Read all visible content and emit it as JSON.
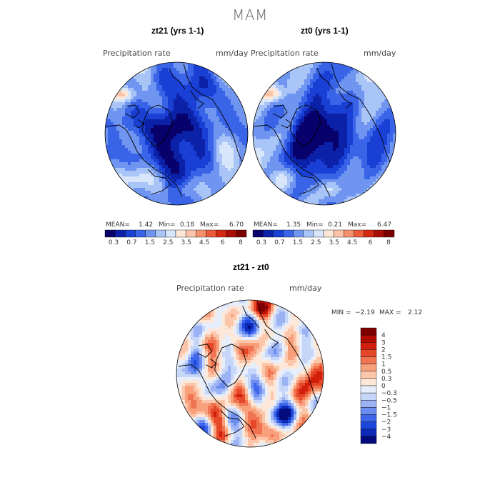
{
  "figure_title": "MAM",
  "colors": {
    "abs_scale": [
      "#08006b",
      "#0b22a8",
      "#1a3fd4",
      "#3a64e8",
      "#6f95f0",
      "#a9c4f7",
      "#d7e6fb",
      "#fde8d8",
      "#fbc3a7",
      "#f6906d",
      "#ec5c3b",
      "#d42a14",
      "#a90f07",
      "#7a0000"
    ],
    "diff_scale": [
      "#040b7d",
      "#0b2ab6",
      "#1c47dc",
      "#3d66ea",
      "#6b8cf0",
      "#9bb3f5",
      "#c5d6f9",
      "#e6eefc",
      "#fde7d8",
      "#fbc6a9",
      "#f7a07b",
      "#f07451",
      "#e64728",
      "#d21f0c",
      "#b30a04",
      "#7f0000"
    ]
  },
  "panels": [
    {
      "title": "zt21 (yrs 1-1)",
      "field_label": "Precipitation rate",
      "units": "mm/day",
      "stats": {
        "mean_label": "MEAN=",
        "mean": "1.42",
        "min_label": "Min=",
        "min": "0.18",
        "max_label": "Max=",
        "max": "6.70"
      },
      "colorbar_ticks": [
        "0.3",
        "0.7",
        "1.5",
        "2.5",
        "3.5",
        "4.5",
        "6",
        "8"
      ]
    },
    {
      "title": "zt0 (yrs 1-1)",
      "field_label": "Precipitation rate",
      "units": "mm/day",
      "stats": {
        "mean_label": "MEAN=",
        "mean": "1.35",
        "min_label": "Min=",
        "min": "0.21",
        "max_label": "Max=",
        "max": "6.47"
      },
      "colorbar_ticks": [
        "0.3",
        "0.7",
        "1.5",
        "2.5",
        "3.5",
        "4.5",
        "6",
        "8"
      ]
    },
    {
      "title": "zt21 - zt0",
      "field_label": "Precipitation rate",
      "units": "mm/day",
      "stats": {
        "min_label": "MIN =",
        "min": "−2.19",
        "max_label": "MAX =",
        "max": "2.12"
      },
      "colorbar_ticks": [
        "4",
        "3",
        "2",
        "1.5",
        "1",
        "0.5",
        "0.3",
        "0",
        "−0.3",
        "−0.5",
        "−1",
        "−1.5",
        "−2",
        "−3",
        "−4"
      ]
    }
  ],
  "chart_data": [
    {
      "type": "heatmap",
      "projection": "north polar stereographic",
      "title": "zt21 (yrs 1-1)",
      "variable": "Precipitation rate",
      "units": "mm/day",
      "mean": 1.42,
      "min": 0.18,
      "max": 6.7,
      "levels": [
        0.3,
        0.7,
        1.5,
        2.5,
        3.5,
        4.5,
        6,
        8
      ]
    },
    {
      "type": "heatmap",
      "projection": "north polar stereographic",
      "title": "zt0 (yrs 1-1)",
      "variable": "Precipitation rate",
      "units": "mm/day",
      "mean": 1.35,
      "min": 0.21,
      "max": 6.47,
      "levels": [
        0.3,
        0.7,
        1.5,
        2.5,
        3.5,
        4.5,
        6,
        8
      ]
    },
    {
      "type": "heatmap",
      "projection": "north polar stereographic",
      "title": "zt21 - zt0",
      "variable": "Precipitation rate",
      "units": "mm/day",
      "min": -2.19,
      "max": 2.12,
      "levels": [
        -4,
        -3,
        -2,
        -1.5,
        -1,
        -0.5,
        -0.3,
        0,
        0.3,
        0.5,
        1,
        1.5,
        2,
        3,
        4
      ]
    }
  ]
}
